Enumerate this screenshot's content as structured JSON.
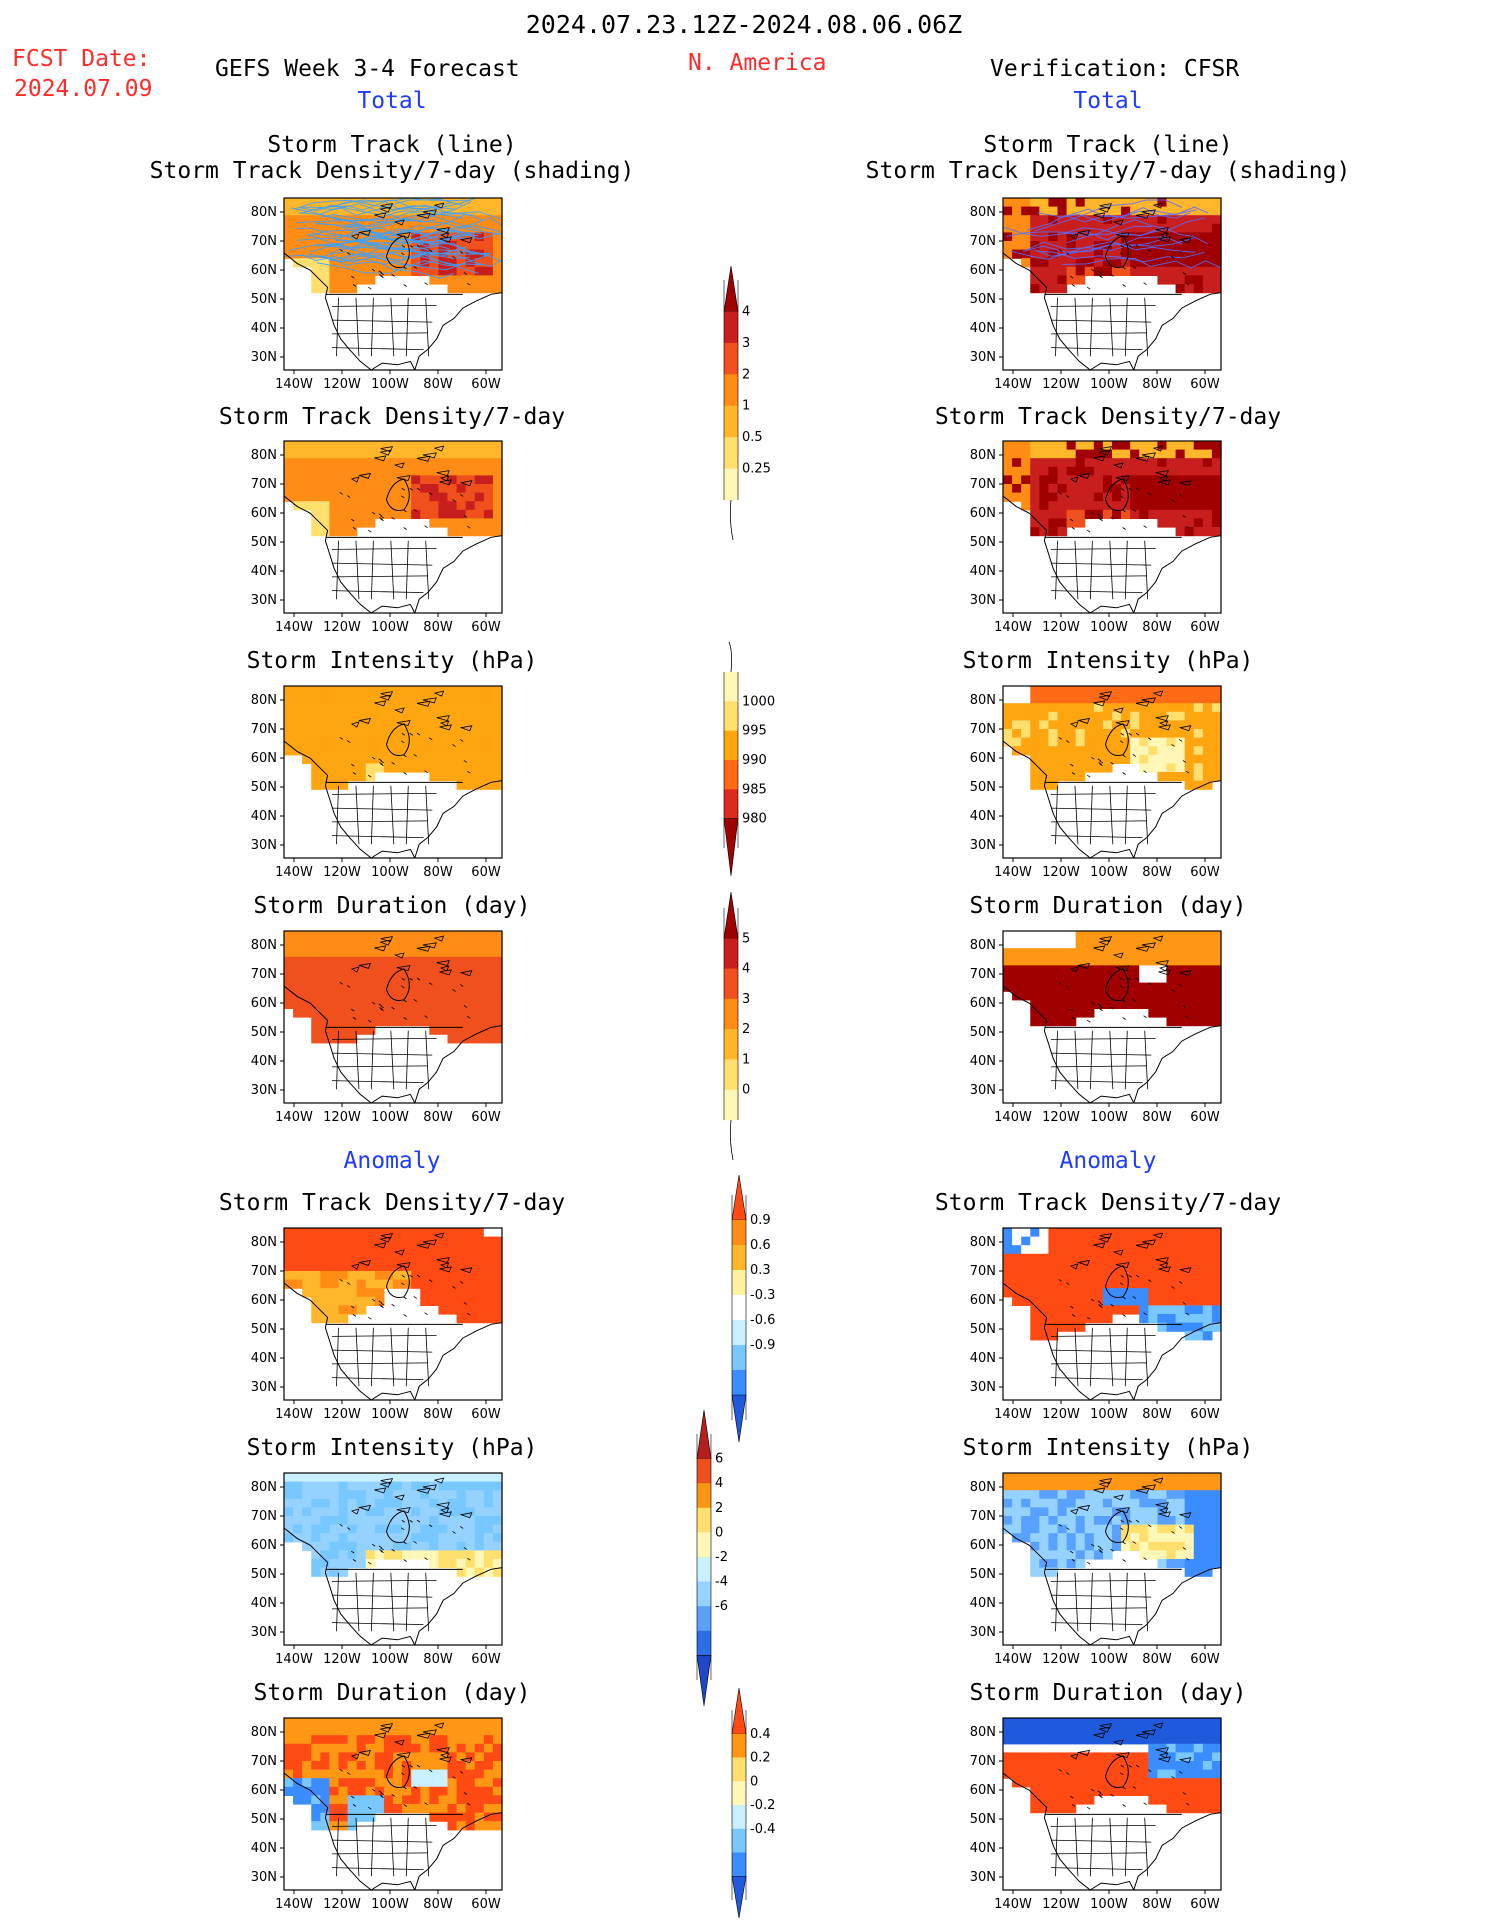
{
  "header": {
    "date_range": "2024.07.23.12Z-2024.08.06.06Z",
    "fcst_label": "FCST Date:",
    "fcst_date": "2024.07.09",
    "model_title": "GEFS Week 3-4 Forecast",
    "region": "N. America",
    "verification": "Verification: CFSR"
  },
  "sections": {
    "total_left": "Total",
    "total_right": "Total",
    "anomaly_left": "Anomaly",
    "anomaly_right": "Anomaly"
  },
  "colors": {
    "accent_red": "#ff2b2b",
    "accent_blue": "#1f3bff",
    "track_line_forecast": "#3aa0ff",
    "track_line_verif": "#5a6cff"
  },
  "chart_data": [
    {
      "type": "heatmap",
      "panel": "forecast",
      "row": 1,
      "title_line1": "Storm Track (line)",
      "title_line2": "Storm Track Density/7-day (shading)",
      "xlabels": [
        "140W",
        "120W",
        "100W",
        "80W",
        "60W"
      ],
      "ylabels": [
        "80N",
        "70N",
        "60N",
        "50N",
        "40N",
        "30N"
      ]
    },
    {
      "type": "heatmap",
      "panel": "verification",
      "row": 1,
      "title_line1": "Storm Track (line)",
      "title_line2": "Storm Track Density/7-day (shading)",
      "xlabels": [
        "140W",
        "120W",
        "100W",
        "80W",
        "60W"
      ],
      "ylabels": [
        "80N",
        "70N",
        "60N",
        "50N",
        "40N",
        "30N"
      ]
    },
    {
      "type": "heatmap",
      "panel": "forecast",
      "row": 2,
      "title_line1": "Storm Track Density/7-day",
      "xlabels": [
        "140W",
        "120W",
        "100W",
        "80W",
        "60W"
      ],
      "ylabels": [
        "80N",
        "70N",
        "60N",
        "50N",
        "40N",
        "30N"
      ]
    },
    {
      "type": "heatmap",
      "panel": "verification",
      "row": 2,
      "title_line1": "Storm Track Density/7-day",
      "xlabels": [
        "140W",
        "120W",
        "100W",
        "80W",
        "60W"
      ],
      "ylabels": [
        "80N",
        "70N",
        "60N",
        "50N",
        "40N",
        "30N"
      ]
    },
    {
      "type": "heatmap",
      "panel": "forecast",
      "row": 3,
      "title_line1": "Storm Intensity (hPa)",
      "xlabels": [
        "140W",
        "120W",
        "100W",
        "80W",
        "60W"
      ],
      "ylabels": [
        "80N",
        "70N",
        "60N",
        "50N",
        "40N",
        "30N"
      ]
    },
    {
      "type": "heatmap",
      "panel": "verification",
      "row": 3,
      "title_line1": "Storm Intensity (hPa)",
      "xlabels": [
        "140W",
        "120W",
        "100W",
        "80W",
        "60W"
      ],
      "ylabels": [
        "80N",
        "70N",
        "60N",
        "50N",
        "40N",
        "30N"
      ]
    },
    {
      "type": "heatmap",
      "panel": "forecast",
      "row": 4,
      "title_line1": "Storm Duration (day)",
      "xlabels": [
        "140W",
        "120W",
        "100W",
        "80W",
        "60W"
      ],
      "ylabels": [
        "80N",
        "70N",
        "60N",
        "50N",
        "40N",
        "30N"
      ]
    },
    {
      "type": "heatmap",
      "panel": "verification",
      "row": 4,
      "title_line1": "Storm Duration (day)",
      "xlabels": [
        "140W",
        "120W",
        "100W",
        "80W",
        "60W"
      ],
      "ylabels": [
        "80N",
        "70N",
        "60N",
        "50N",
        "40N",
        "30N"
      ]
    },
    {
      "type": "heatmap",
      "panel": "forecast",
      "row": 5,
      "title_line1": "Storm Track Density/7-day",
      "xlabels": [
        "140W",
        "120W",
        "100W",
        "80W",
        "60W"
      ],
      "ylabels": [
        "80N",
        "70N",
        "60N",
        "50N",
        "40N",
        "30N"
      ]
    },
    {
      "type": "heatmap",
      "panel": "verification",
      "row": 5,
      "title_line1": "Storm Track Density/7-day",
      "xlabels": [
        "140W",
        "120W",
        "100W",
        "80W",
        "60W"
      ],
      "ylabels": [
        "80N",
        "70N",
        "60N",
        "50N",
        "40N",
        "30N"
      ]
    },
    {
      "type": "heatmap",
      "panel": "forecast",
      "row": 6,
      "title_line1": "Storm Intensity (hPa)",
      "xlabels": [
        "140W",
        "120W",
        "100W",
        "80W",
        "60W"
      ],
      "ylabels": [
        "80N",
        "70N",
        "60N",
        "50N",
        "40N",
        "30N"
      ]
    },
    {
      "type": "heatmap",
      "panel": "verification",
      "row": 6,
      "title_line1": "Storm Intensity (hPa)",
      "xlabels": [
        "140W",
        "120W",
        "100W",
        "80W",
        "60W"
      ],
      "ylabels": [
        "80N",
        "70N",
        "60N",
        "50N",
        "40N",
        "30N"
      ]
    },
    {
      "type": "heatmap",
      "panel": "forecast",
      "row": 7,
      "title_line1": "Storm Duration (day)",
      "xlabels": [
        "140W",
        "120W",
        "100W",
        "80W",
        "60W"
      ],
      "ylabels": [
        "80N",
        "70N",
        "60N",
        "50N",
        "40N",
        "30N"
      ]
    },
    {
      "type": "heatmap",
      "panel": "verification",
      "row": 7,
      "title_line1": "Storm Duration (day)",
      "xlabels": [
        "140W",
        "120W",
        "100W",
        "80W",
        "60W"
      ],
      "ylabels": [
        "80N",
        "70N",
        "60N",
        "50N",
        "40N",
        "30N"
      ]
    }
  ],
  "colorbars": [
    {
      "for": "Storm Track Density/7-day",
      "levels": [
        "0.25",
        "0.5",
        "1",
        "2",
        "3",
        "4"
      ],
      "colors": [
        "#fff7b8",
        "#ffdf6e",
        "#ffb62a",
        "#ff8c14",
        "#f0501e",
        "#c81e1e",
        "#a00000"
      ]
    },
    {
      "for": "Storm Intensity (hPa)",
      "levels": [
        "1000",
        "995",
        "990",
        "985",
        "980"
      ],
      "colors": [
        "#fff7b8",
        "#ffdf6e",
        "#ffa510",
        "#ff6a14",
        "#dc2a1e",
        "#a00000"
      ]
    },
    {
      "for": "Storm Duration (day)",
      "levels": [
        "5",
        "4",
        "3",
        "2",
        "1",
        "0"
      ],
      "colors": [
        "#a00000",
        "#c81e1e",
        "#f0501e",
        "#ff8c14",
        "#ffb62a",
        "#ffdf6e",
        "#fff7b8"
      ]
    },
    {
      "for": "Storm Track Density/7-day anomaly",
      "levels": [
        "0.9",
        "0.6",
        "0.3",
        "-0.3",
        "-0.6",
        "-0.9"
      ],
      "colors": [
        "#ff4a14",
        "#ff8c14",
        "#ffb62a",
        "#fff29e",
        "#ffffff",
        "#c8f0ff",
        "#78c8ff",
        "#3a8cff",
        "#1f5adc"
      ]
    },
    {
      "for": "Storm Intensity (hPa) anomaly",
      "levels": [
        "6",
        "4",
        "2",
        "0",
        "-2",
        "-4",
        "-6"
      ],
      "colors": [
        "#b41e1e",
        "#f0501e",
        "#ff9614",
        "#ffdf6e",
        "#fff7b8",
        "#c8f0ff",
        "#96d2ff",
        "#5aa0ff",
        "#2d6ee6",
        "#1e46c8"
      ]
    },
    {
      "for": "Storm Duration (day) anomaly",
      "levels": [
        "0.4",
        "0.2",
        "0",
        "-0.2",
        "-0.4"
      ],
      "colors": [
        "#ff4a14",
        "#ff9614",
        "#ffdf6e",
        "#fff7b8",
        "#c8f0ff",
        "#78c8ff",
        "#3a8cff",
        "#1f5adc"
      ]
    }
  ]
}
